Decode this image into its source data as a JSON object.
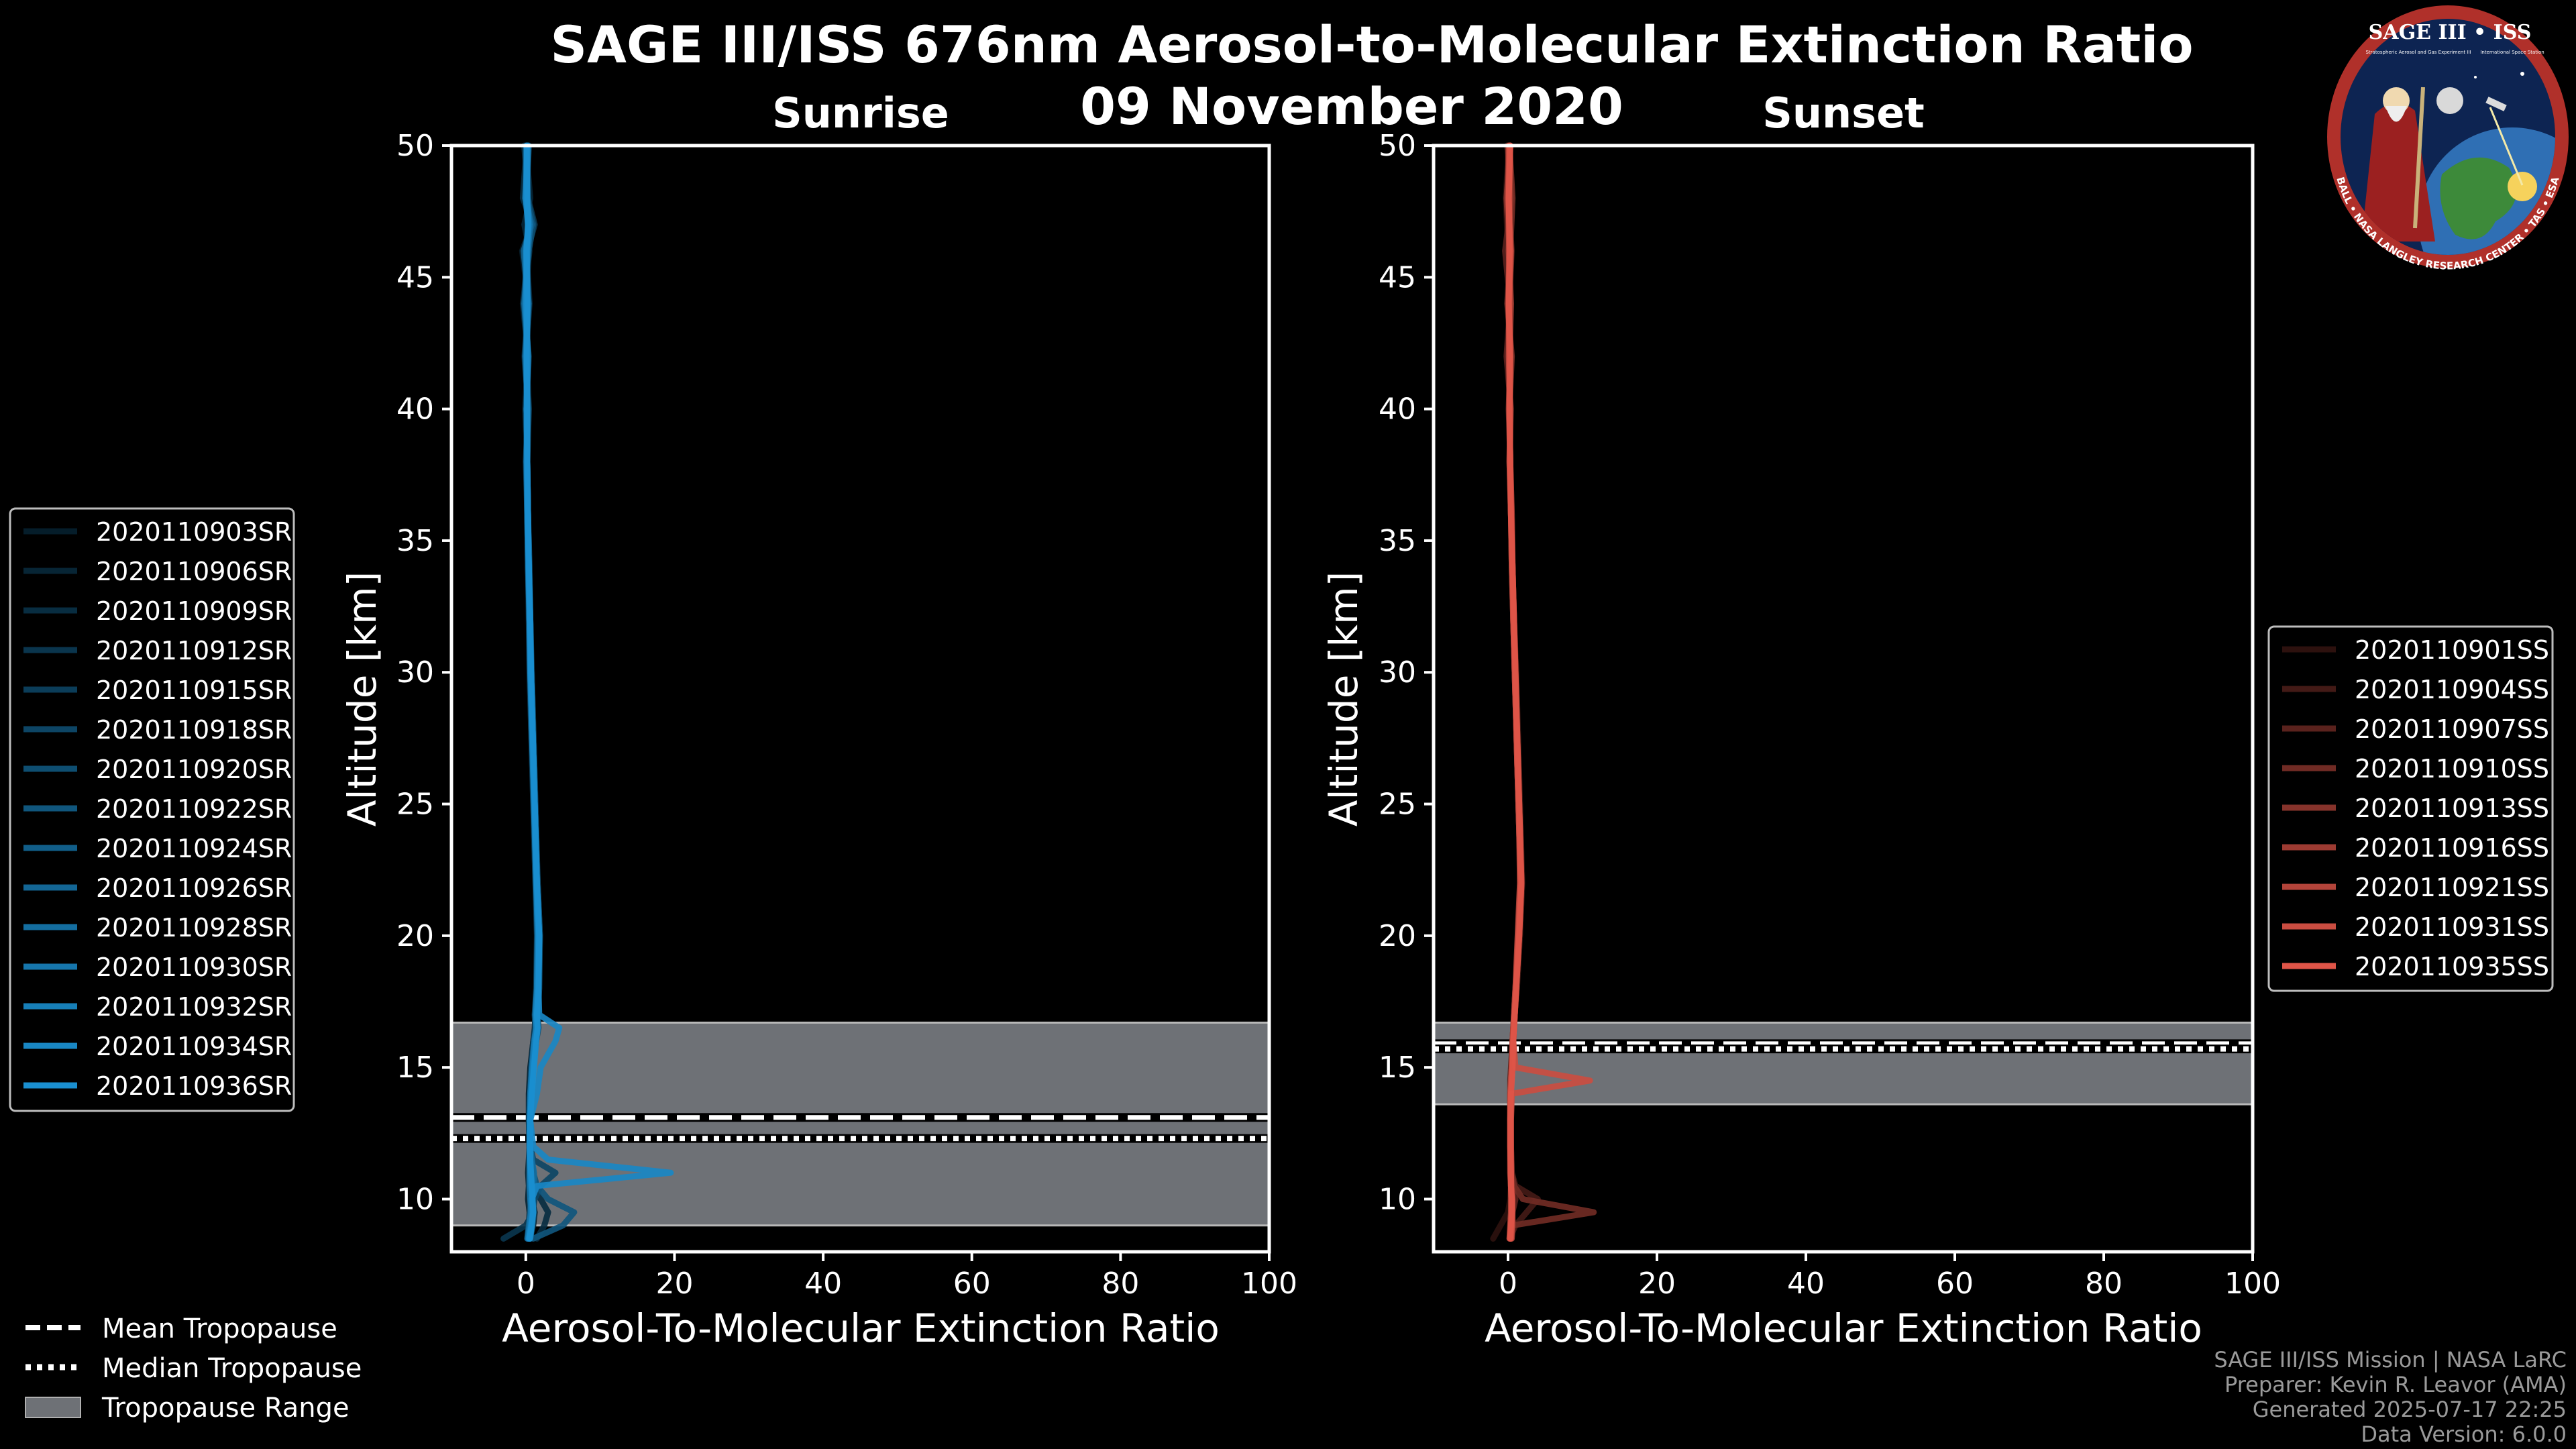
{
  "figure": {
    "title_line1": "SAGE III/ISS 676nm Aerosol-to-Molecular Extinction Ratio",
    "title_line2": "09 November 2020"
  },
  "logo": {
    "title": "SAGE III • ISS",
    "subtitle": "Stratospheric Aerosol and Gas Experiment III",
    "right_text": "International Space Station",
    "ring_text": "BALL • NASA LANGLEY RESEARCH CENTER • TAS • ESA"
  },
  "credits": {
    "line1": "SAGE III/ISS Mission | NASA LaRC",
    "line2": "Preparer: Kevin R. Leavor (AMA)",
    "line3": "Generated 2025-07-17 22:25",
    "line4": "Data Version: 6.0.0"
  },
  "tropopause_legend": {
    "mean": "Mean Tropopause",
    "median": "Median Tropopause",
    "range": "Tropopause Range"
  },
  "colors": {
    "sunrise_line": "#1a8fd0",
    "sunset_line": "#e05548",
    "trop_range": "#6e7176",
    "background": "#000000"
  },
  "chart_data": [
    {
      "type": "line",
      "panel": "sunrise",
      "title": "Sunrise",
      "xlabel": "Aerosol-To-Molecular Extinction Ratio",
      "ylabel": "Altitude [km]",
      "xlim": [
        -10,
        100
      ],
      "ylim": [
        8,
        50
      ],
      "xticks": [
        0,
        20,
        40,
        60,
        80,
        100
      ],
      "yticks": [
        10,
        15,
        20,
        25,
        30,
        35,
        40,
        45,
        50
      ],
      "tropopause": {
        "mean": 13.1,
        "median": 12.3,
        "range": [
          9.0,
          16.7
        ]
      },
      "altitudes": [
        8.5,
        9.0,
        9.5,
        10.0,
        10.5,
        11.0,
        11.5,
        12.0,
        13.0,
        14.0,
        15.0,
        16.0,
        16.5,
        17.0,
        18.0,
        20.0,
        22.0,
        24.0,
        26.0,
        28.0,
        30.0,
        32.0,
        34.0,
        36.0,
        38.0,
        40.0,
        42.0,
        44.0,
        46.0,
        47.0,
        48.0,
        50.0
      ],
      "series": [
        {
          "name": "2020110903SR",
          "values": [
            0.5,
            1.0,
            1.2,
            0.8,
            0.6,
            0.5,
            0.6,
            0.5,
            0.4,
            0.4,
            0.6,
            1.0,
            1.3,
            1.2,
            1.5,
            1.6,
            1.3,
            1.1,
            0.9,
            0.7,
            0.6,
            0.5,
            0.3,
            0.2,
            0.1,
            0.3,
            -0.2,
            0.4,
            -0.5,
            0.8,
            -0.3,
            0.2
          ]
        },
        {
          "name": "2020110906SR",
          "values": [
            0.2,
            0.4,
            0.5,
            0.3,
            0.4,
            0.3,
            0.4,
            0.5,
            0.6,
            0.5,
            0.7,
            1.1,
            1.4,
            1.3,
            1.6,
            1.7,
            1.4,
            1.2,
            1.0,
            0.8,
            0.6,
            0.5,
            0.4,
            0.2,
            0.2,
            -0.1,
            0.3,
            -0.4,
            0.5,
            -0.2,
            0.6,
            0.0
          ]
        },
        {
          "name": "2020110909SR",
          "values": [
            1.5,
            2.5,
            3.0,
            2.0,
            1.0,
            0.8,
            0.6,
            0.5,
            0.5,
            0.6,
            0.8,
            1.2,
            1.5,
            1.4,
            1.7,
            1.8,
            1.5,
            1.3,
            1.1,
            0.9,
            0.7,
            0.6,
            0.4,
            0.3,
            0.1,
            0.2,
            0.0,
            0.5,
            0.1,
            0.9,
            -0.4,
            0.1
          ]
        },
        {
          "name": "2020110912SR",
          "values": [
            -3.0,
            0.0,
            1.0,
            1.0,
            0.8,
            0.7,
            0.6,
            0.5,
            0.4,
            0.5,
            0.7,
            1.0,
            1.2,
            1.3,
            1.5,
            1.6,
            1.4,
            1.2,
            1.0,
            0.8,
            0.6,
            0.5,
            0.3,
            0.2,
            0.2,
            0.1,
            0.4,
            -0.3,
            0.2,
            1.2,
            0.3,
            -0.2
          ]
        },
        {
          "name": "2020110915SR",
          "values": [
            0.4,
            0.6,
            0.8,
            0.7,
            0.6,
            0.6,
            0.5,
            0.5,
            0.5,
            0.6,
            0.8,
            1.1,
            1.3,
            1.2,
            1.4,
            1.5,
            1.3,
            1.1,
            0.9,
            0.7,
            0.5,
            0.4,
            0.3,
            0.2,
            0.0,
            0.3,
            -0.1,
            0.2,
            -0.2,
            0.5,
            0.0,
            0.3
          ]
        },
        {
          "name": "2020110918SR",
          "values": [
            0.3,
            0.5,
            0.9,
            1.2,
            2.0,
            4.0,
            1.0,
            0.6,
            0.5,
            0.6,
            0.9,
            1.3,
            1.6,
            1.5,
            1.7,
            1.9,
            1.6,
            1.4,
            1.2,
            1.0,
            0.8,
            0.6,
            0.5,
            0.3,
            0.2,
            0.4,
            0.1,
            0.3,
            0.2,
            0.7,
            0.1,
            0.4
          ]
        },
        {
          "name": "2020110920SR",
          "values": [
            0.6,
            0.9,
            1.1,
            0.9,
            0.7,
            0.6,
            0.6,
            0.5,
            0.5,
            0.7,
            1.0,
            1.4,
            1.7,
            1.6,
            1.8,
            1.9,
            1.6,
            1.3,
            1.1,
            0.9,
            0.7,
            0.6,
            0.4,
            0.3,
            0.2,
            0.1,
            0.3,
            0.0,
            0.4,
            1.0,
            0.2,
            0.1
          ]
        },
        {
          "name": "2020110922SR",
          "values": [
            1.0,
            5.0,
            6.5,
            3.0,
            1.5,
            1.0,
            0.8,
            0.6,
            0.5,
            0.6,
            0.8,
            1.2,
            1.5,
            1.4,
            1.6,
            1.7,
            1.5,
            1.3,
            1.1,
            0.9,
            0.7,
            0.6,
            0.4,
            0.3,
            0.2,
            0.2,
            0.1,
            0.3,
            0.0,
            0.6,
            0.3,
            0.2
          ]
        },
        {
          "name": "2020110924SR",
          "values": [
            0.2,
            0.4,
            0.6,
            0.7,
            0.8,
            0.9,
            0.7,
            0.6,
            0.6,
            0.7,
            0.9,
            1.3,
            1.6,
            1.5,
            1.7,
            1.8,
            1.5,
            1.3,
            1.1,
            0.9,
            0.7,
            0.6,
            0.4,
            0.3,
            0.1,
            0.3,
            -0.1,
            0.4,
            -0.3,
            0.8,
            -0.1,
            0.3
          ]
        },
        {
          "name": "2020110926SR",
          "values": [
            0.5,
            0.7,
            0.9,
            0.8,
            0.7,
            0.6,
            0.6,
            0.5,
            0.5,
            0.6,
            0.8,
            1.1,
            1.4,
            1.3,
            1.6,
            1.7,
            1.5,
            1.3,
            1.1,
            0.9,
            0.7,
            0.5,
            0.4,
            0.2,
            0.1,
            0.2,
            0.0,
            0.2,
            0.1,
            0.4,
            0.0,
            0.1
          ]
        },
        {
          "name": "2020110928SR",
          "values": [
            0.4,
            0.6,
            0.8,
            0.9,
            1.0,
            1.1,
            0.8,
            0.6,
            0.5,
            0.6,
            0.9,
            1.2,
            1.5,
            1.4,
            1.6,
            1.7,
            1.4,
            1.2,
            1.0,
            0.8,
            0.6,
            0.5,
            0.3,
            0.2,
            0.2,
            0.1,
            0.3,
            -0.2,
            0.3,
            0.6,
            0.1,
            0.2
          ]
        },
        {
          "name": "2020110930SR",
          "values": [
            0.3,
            0.5,
            0.7,
            0.6,
            0.5,
            0.5,
            0.5,
            0.5,
            0.5,
            0.7,
            1.0,
            1.3,
            1.5,
            1.4,
            1.6,
            1.7,
            1.5,
            1.3,
            1.1,
            0.9,
            0.7,
            0.5,
            0.4,
            0.3,
            0.1,
            0.2,
            0.1,
            0.3,
            0.1,
            0.5,
            0.1,
            0.2
          ]
        },
        {
          "name": "2020110932SR",
          "values": [
            0.6,
            0.8,
            1.0,
            0.9,
            0.7,
            0.6,
            0.6,
            0.5,
            0.6,
            0.7,
            0.9,
            1.2,
            1.4,
            1.3,
            1.5,
            1.6,
            1.4,
            1.2,
            1.0,
            0.8,
            0.6,
            0.5,
            0.4,
            0.2,
            0.2,
            0.1,
            0.2,
            0.1,
            0.0,
            0.4,
            0.1,
            0.3
          ]
        },
        {
          "name": "2020110934SR",
          "values": [
            0.4,
            0.7,
            0.9,
            0.8,
            1.5,
            19.5,
            3.0,
            1.0,
            0.6,
            1.5,
            2.0,
            4.0,
            4.5,
            1.8,
            1.7,
            1.8,
            1.5,
            1.3,
            1.1,
            0.9,
            0.7,
            0.5,
            0.4,
            0.3,
            0.2,
            0.1,
            0.3,
            0.0,
            0.2,
            0.3,
            0.0,
            0.2
          ]
        },
        {
          "name": "2020110936SR",
          "values": [
            0.5,
            0.8,
            1.0,
            0.9,
            0.8,
            0.7,
            0.6,
            0.6,
            0.6,
            0.8,
            1.1,
            1.4,
            1.6,
            1.5,
            1.7,
            1.8,
            1.5,
            1.3,
            1.1,
            0.9,
            0.7,
            0.6,
            0.4,
            0.3,
            0.2,
            0.2,
            0.1,
            0.2,
            0.1,
            0.3,
            0.2,
            0.1
          ]
        }
      ]
    },
    {
      "type": "line",
      "panel": "sunset",
      "title": "Sunset",
      "xlabel": "Aerosol-To-Molecular Extinction Ratio",
      "ylabel": "Altitude [km]",
      "xlim": [
        -10,
        100
      ],
      "ylim": [
        8,
        50
      ],
      "xticks": [
        0,
        20,
        40,
        60,
        80,
        100
      ],
      "yticks": [
        10,
        15,
        20,
        25,
        30,
        35,
        40,
        45,
        50
      ],
      "tropopause": {
        "mean": 15.9,
        "median": 15.7,
        "range": [
          13.6,
          16.7
        ]
      },
      "altitudes": [
        8.5,
        9.0,
        9.5,
        10.0,
        10.5,
        11.0,
        12.0,
        13.0,
        14.0,
        14.5,
        15.0,
        16.0,
        17.0,
        18.0,
        20.0,
        22.0,
        24.0,
        26.0,
        28.0,
        30.0,
        32.0,
        34.0,
        36.0,
        38.0,
        40.0,
        42.0,
        44.0,
        46.0,
        48.0,
        50.0
      ],
      "series": [
        {
          "name": "2020110901SS",
          "values": [
            -2.0,
            -1.0,
            0.0,
            0.3,
            0.4,
            0.3,
            0.3,
            0.3,
            0.4,
            0.4,
            0.5,
            0.6,
            0.9,
            1.1,
            1.5,
            1.8,
            1.6,
            1.4,
            1.2,
            1.0,
            0.8,
            0.6,
            0.4,
            0.2,
            0.3,
            0.1,
            0.2,
            0.0,
            -0.3,
            0.1
          ]
        },
        {
          "name": "2020110904SS",
          "values": [
            0.2,
            1.0,
            2.5,
            4.0,
            1.0,
            0.5,
            0.4,
            0.3,
            0.3,
            0.4,
            0.5,
            0.6,
            0.9,
            1.2,
            1.6,
            1.9,
            1.7,
            1.5,
            1.3,
            1.1,
            0.8,
            0.6,
            0.5,
            0.3,
            0.2,
            0.4,
            0.1,
            0.5,
            0.0,
            0.2
          ]
        },
        {
          "name": "2020110907SS",
          "values": [
            0.3,
            0.5,
            0.6,
            1.0,
            0.6,
            0.4,
            0.4,
            0.3,
            0.3,
            0.3,
            0.4,
            0.6,
            0.8,
            1.0,
            1.4,
            1.7,
            1.5,
            1.3,
            1.1,
            0.9,
            0.7,
            0.5,
            0.4,
            0.2,
            0.4,
            -0.2,
            0.3,
            -0.4,
            0.5,
            -0.1
          ]
        },
        {
          "name": "2020110910SS",
          "values": [
            0.4,
            0.6,
            11.5,
            2.0,
            0.8,
            0.5,
            0.4,
            0.4,
            0.4,
            0.4,
            0.5,
            0.7,
            0.9,
            1.1,
            1.5,
            1.8,
            1.6,
            1.4,
            1.2,
            1.0,
            0.8,
            0.6,
            0.4,
            0.3,
            0.2,
            0.5,
            -0.1,
            0.3,
            0.6,
            0.2
          ]
        },
        {
          "name": "2020110913SS",
          "values": [
            0.3,
            0.4,
            0.5,
            0.5,
            0.4,
            0.4,
            0.3,
            0.3,
            0.3,
            0.4,
            0.5,
            0.6,
            0.8,
            1.0,
            1.4,
            1.7,
            1.5,
            1.3,
            1.1,
            0.9,
            0.7,
            0.5,
            0.4,
            0.3,
            0.1,
            0.3,
            0.0,
            0.2,
            -0.2,
            0.3
          ]
        },
        {
          "name": "2020110916SS",
          "values": [
            0.5,
            0.6,
            0.6,
            0.6,
            0.5,
            0.4,
            0.4,
            0.3,
            0.4,
            0.4,
            0.5,
            0.7,
            0.9,
            1.1,
            1.5,
            1.8,
            1.6,
            1.4,
            1.2,
            1.0,
            0.8,
            0.6,
            0.5,
            0.3,
            0.2,
            0.2,
            0.4,
            0.1,
            0.3,
            0.2
          ]
        },
        {
          "name": "2020110921SS",
          "values": [
            0.2,
            0.3,
            0.4,
            0.4,
            0.4,
            0.3,
            0.3,
            0.3,
            0.3,
            0.4,
            0.5,
            0.6,
            0.8,
            1.0,
            1.3,
            1.6,
            1.5,
            1.3,
            1.1,
            0.9,
            0.7,
            0.5,
            0.4,
            0.2,
            0.3,
            0.1,
            0.2,
            0.4,
            0.0,
            0.1
          ]
        },
        {
          "name": "2020110931SS",
          "values": [
            0.4,
            0.5,
            0.5,
            0.5,
            0.4,
            0.4,
            0.4,
            0.4,
            0.5,
            11.0,
            1.0,
            0.7,
            0.9,
            1.1,
            1.4,
            1.7,
            1.5,
            1.3,
            1.1,
            0.9,
            0.7,
            0.6,
            0.4,
            0.3,
            0.2,
            0.2,
            0.1,
            0.3,
            0.1,
            0.2
          ]
        },
        {
          "name": "2020110935SS",
          "values": [
            0.3,
            0.4,
            0.5,
            0.5,
            0.4,
            0.4,
            0.3,
            0.3,
            0.4,
            0.5,
            0.6,
            0.7,
            0.9,
            1.1,
            1.5,
            1.8,
            1.6,
            1.4,
            1.2,
            1.0,
            0.8,
            0.6,
            0.4,
            0.3,
            0.2,
            0.3,
            0.1,
            0.2,
            0.1,
            0.3
          ]
        }
      ]
    }
  ]
}
